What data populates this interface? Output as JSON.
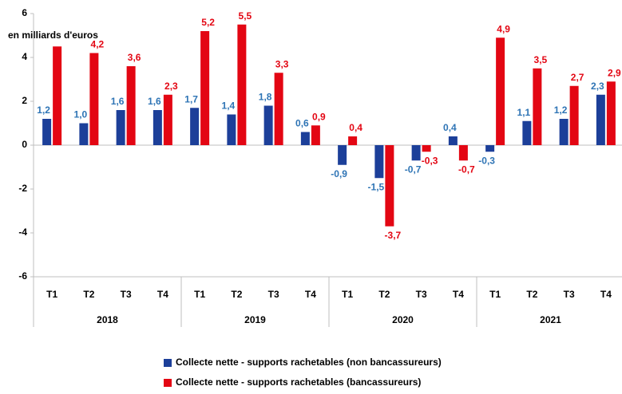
{
  "chart_data": {
    "type": "bar",
    "y_axis_label": "en milliards d'euros",
    "categories": [
      "T1",
      "T2",
      "T3",
      "T4",
      "T1",
      "T2",
      "T3",
      "T4",
      "T1",
      "T2",
      "T3",
      "T4",
      "T1",
      "T2",
      "T3",
      "T4"
    ],
    "groups": [
      "2018",
      "2019",
      "2020",
      "2021"
    ],
    "series": [
      {
        "name": "Collecte nette - supports rachetables (non bancassureurs)",
        "color": "#1c3f99",
        "label_color": "#2e74b5",
        "values": [
          1.2,
          1.0,
          1.6,
          1.6,
          1.7,
          1.4,
          1.8,
          0.6,
          -0.9,
          -1.5,
          -0.7,
          0.4,
          -0.3,
          1.1,
          1.2,
          2.3
        ],
        "value_labels": [
          "1,2",
          "1,0",
          "1,6",
          "1,6",
          "1,7",
          "1,4",
          "1,8",
          "0,6",
          "-0,9",
          "-1,5",
          "-0,7",
          "0,4",
          "-0,3",
          "1,1",
          "1,2",
          "2,3"
        ]
      },
      {
        "name": "Collecte nette - supports rachetables (bancassureurs)",
        "color": "#e30613",
        "label_color": "#e30613",
        "values": [
          4.5,
          4.2,
          3.6,
          2.3,
          5.2,
          5.5,
          3.3,
          0.9,
          0.4,
          -3.7,
          -0.3,
          -0.7,
          4.9,
          3.5,
          2.7,
          2.9
        ],
        "value_labels": [
          null,
          "4,2",
          "3,6",
          "2,3",
          "5,2",
          "5,5",
          "3,3",
          "0,9",
          "0,4",
          "-3,7",
          "-0,3",
          "-0,7",
          "4,9",
          "3,5",
          "2,7",
          "2,9"
        ]
      }
    ],
    "ylim": [
      -6,
      6
    ],
    "yticks": [
      -6,
      -4,
      -2,
      0,
      2,
      4,
      6
    ],
    "grid": false,
    "legend": "bottom"
  }
}
